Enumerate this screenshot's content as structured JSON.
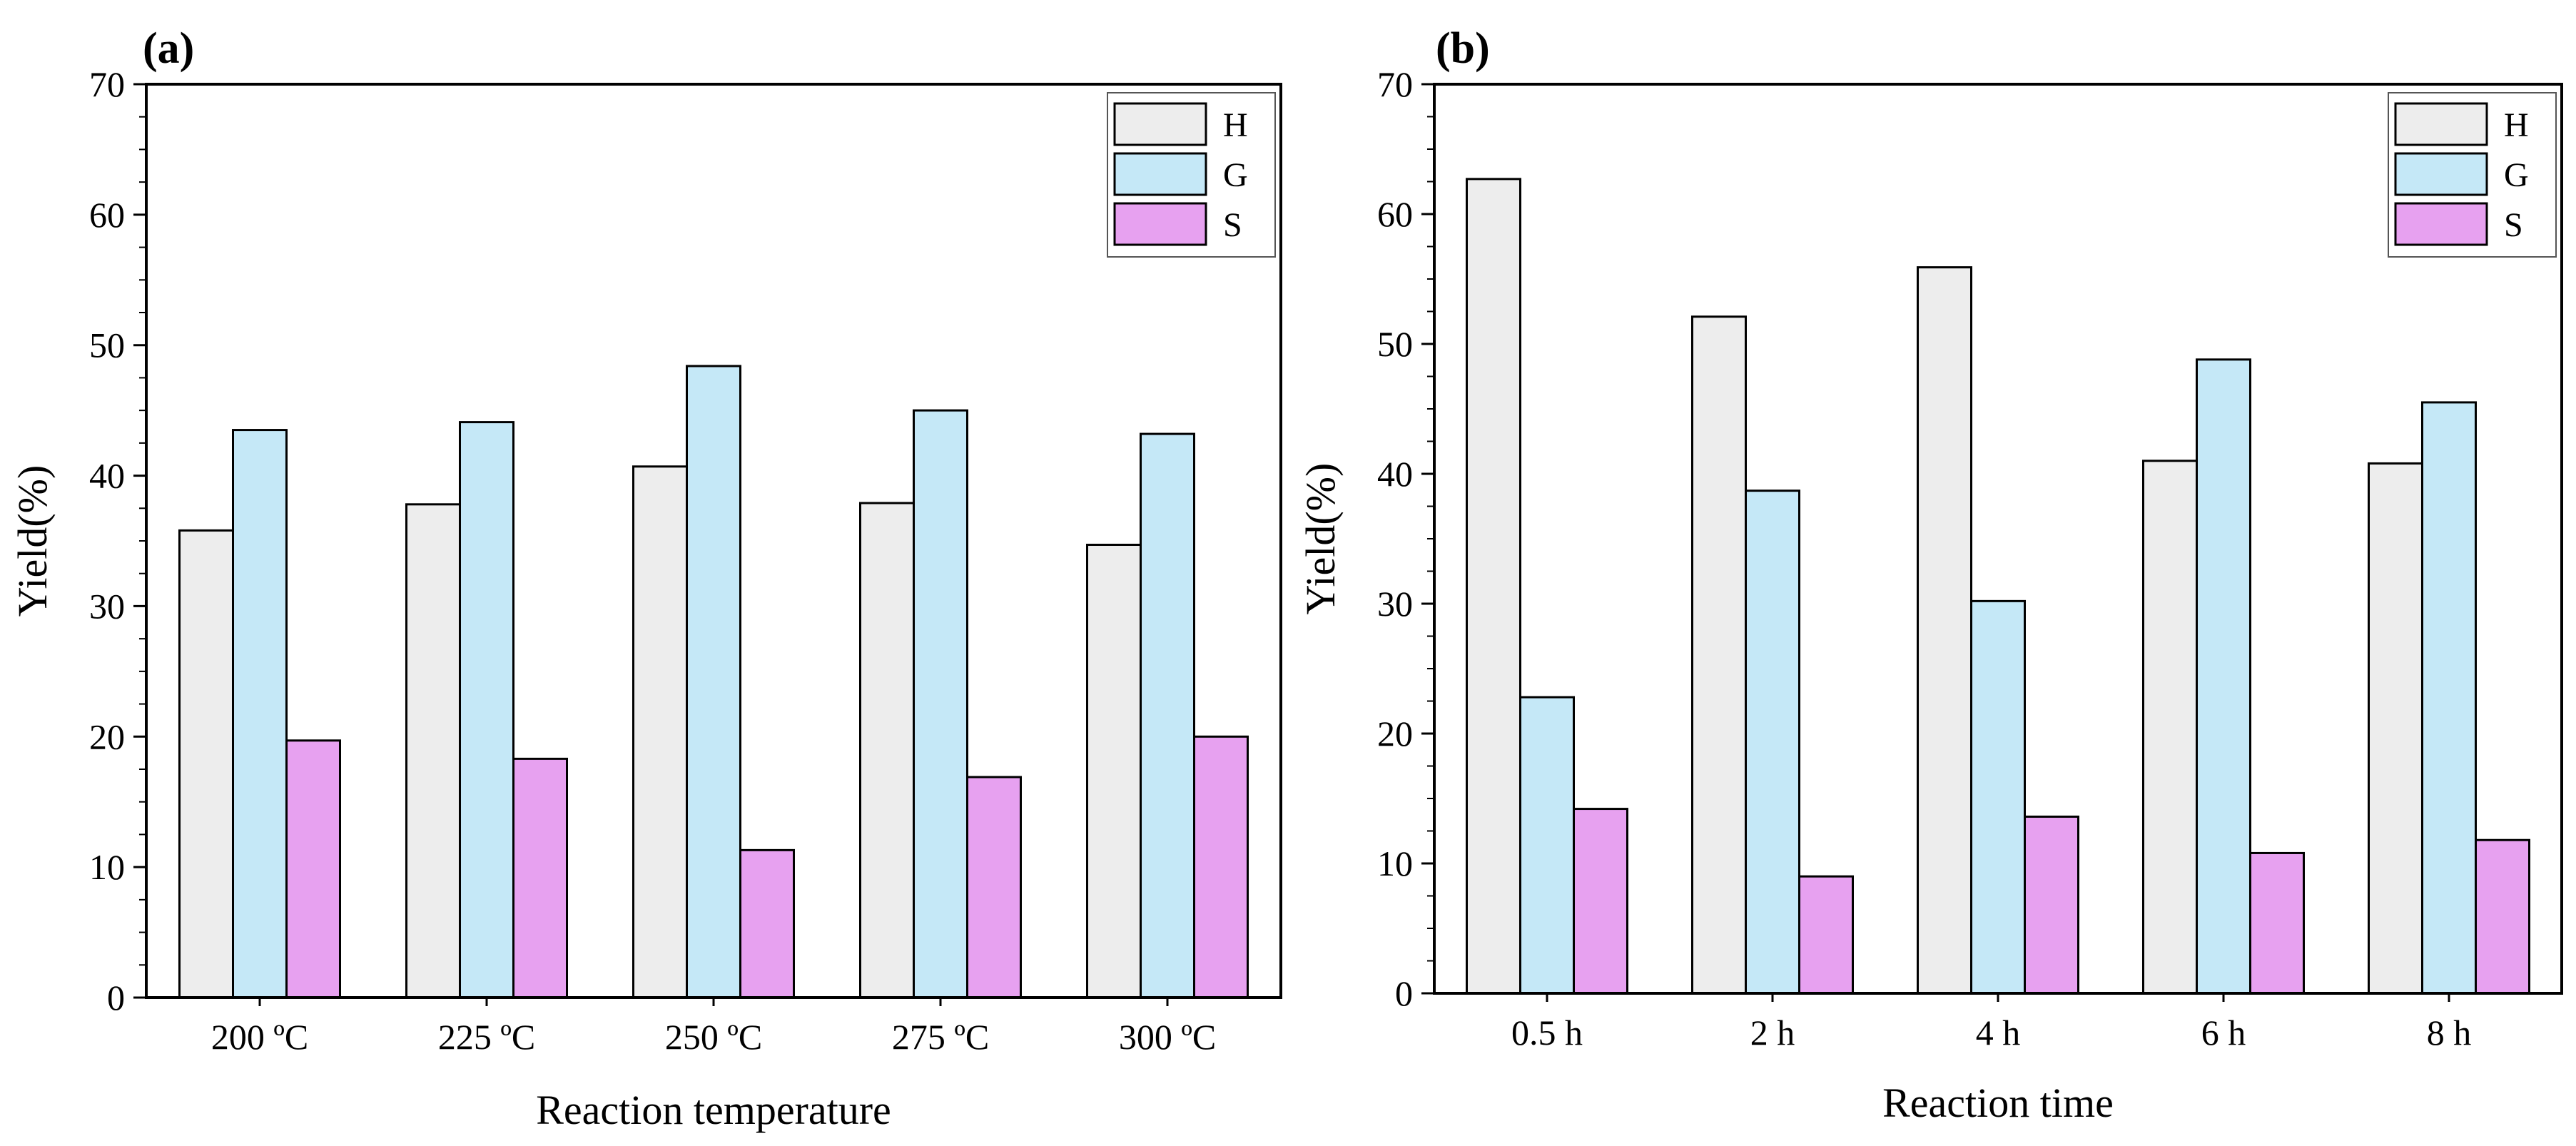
{
  "chart_data": [
    {
      "type": "bar",
      "panel_label": "(a)",
      "categories": [
        "200 ºC",
        "225 ºC",
        "250 ºC",
        "275 ºC",
        "300 ºC"
      ],
      "series": [
        {
          "name": "H",
          "color": "#ededed",
          "values": [
            35.8,
            37.8,
            40.7,
            37.9,
            34.7
          ]
        },
        {
          "name": "G",
          "color": "#c5e8f7",
          "values": [
            43.5,
            44.1,
            48.4,
            45.0,
            43.2
          ]
        },
        {
          "name": "S",
          "color": "#e7a1f0",
          "values": [
            19.7,
            18.3,
            11.3,
            16.9,
            20.0
          ]
        }
      ],
      "xlabel": "Reaction temperature",
      "ylabel": "Yield(%)",
      "ylim": [
        0,
        70
      ],
      "yticks": [
        "0",
        "10",
        "20",
        "30",
        "40",
        "50",
        "60",
        "70"
      ],
      "legend_position": "top-right"
    },
    {
      "type": "bar",
      "panel_label": "(b)",
      "categories": [
        "0.5 h",
        "2 h",
        "4 h",
        "6 h",
        "8 h"
      ],
      "series": [
        {
          "name": "H",
          "color": "#ededed",
          "values": [
            62.7,
            52.1,
            55.9,
            41.0,
            40.8
          ]
        },
        {
          "name": "G",
          "color": "#c5e8f7",
          "values": [
            22.8,
            38.7,
            30.2,
            48.8,
            45.5
          ]
        },
        {
          "name": "S",
          "color": "#e7a1f0",
          "values": [
            14.2,
            9.0,
            13.6,
            10.8,
            11.8
          ]
        }
      ],
      "xlabel": "Reaction time",
      "ylabel": "Yield(%)",
      "ylim": [
        0,
        70
      ],
      "yticks": [
        "0",
        "10",
        "20",
        "30",
        "40",
        "50",
        "60",
        "70"
      ],
      "legend_position": "top-right"
    }
  ]
}
